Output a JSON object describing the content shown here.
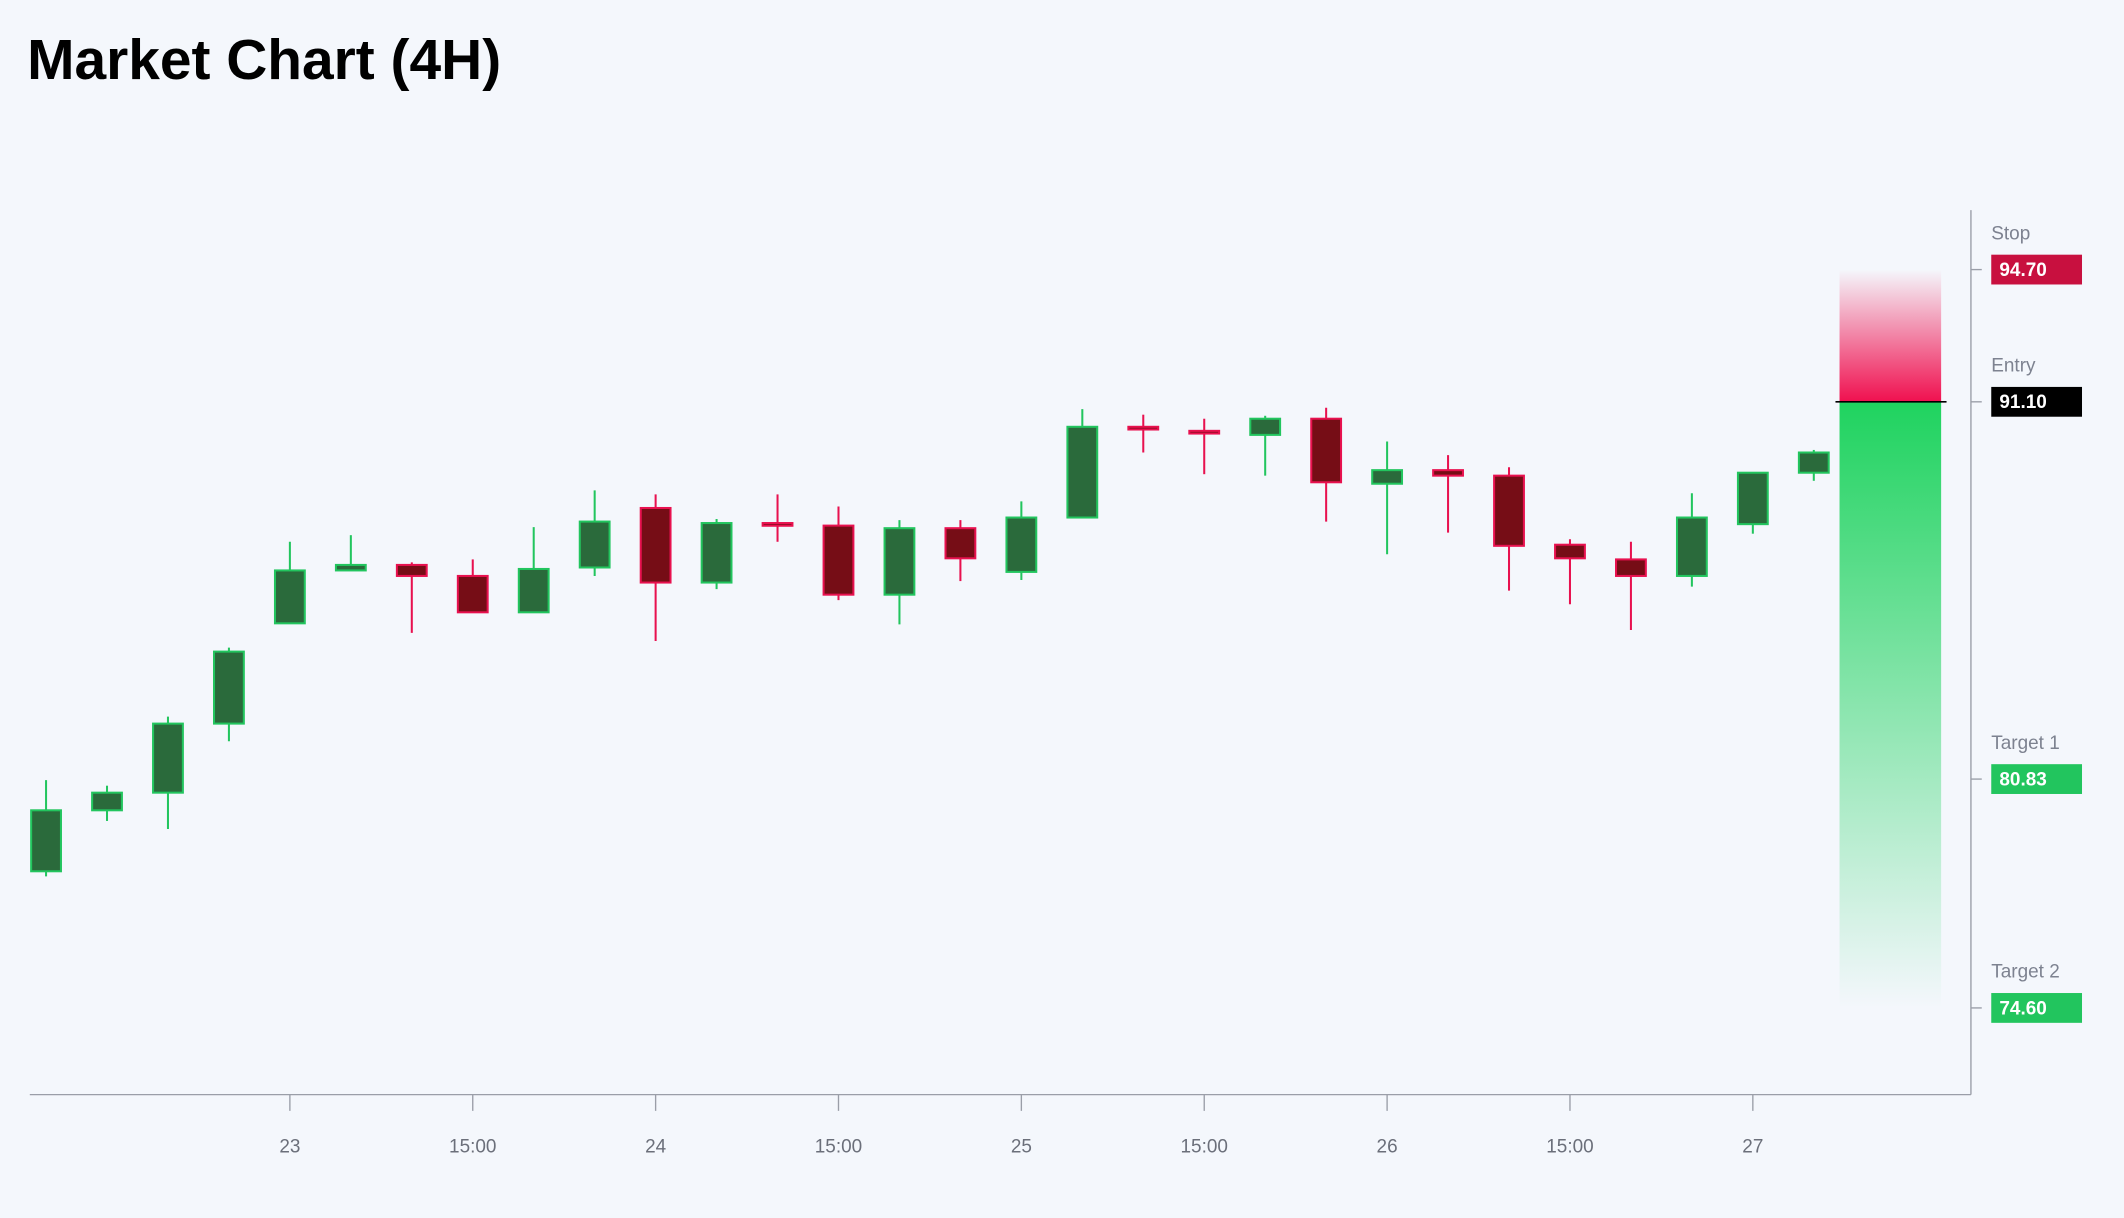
{
  "chart_data": {
    "type": "candlestick",
    "title": "Market Chart (4H)",
    "categories": [
      null,
      null,
      null,
      null,
      "23",
      null,
      null,
      "15:00",
      null,
      null,
      "24",
      null,
      null,
      "15:00",
      null,
      null,
      "25",
      null,
      null,
      "15:00",
      null,
      null,
      "26",
      null,
      null,
      "15:00",
      null,
      null,
      "27",
      null
    ],
    "open": [
      78.32,
      79.98,
      80.46,
      82.34,
      85.07,
      86.51,
      86.66,
      86.36,
      85.37,
      86.59,
      88.21,
      86.18,
      87.8,
      87.73,
      85.85,
      87.66,
      86.47,
      87.95,
      90.42,
      90.31,
      90.2,
      90.64,
      88.87,
      89.24,
      89.09,
      87.21,
      86.81,
      86.36,
      87.77,
      89.17
    ],
    "high": [
      80.8,
      80.65,
      82.53,
      84.41,
      87.29,
      87.47,
      86.73,
      86.81,
      87.69,
      88.69,
      88.58,
      87.91,
      88.58,
      88.25,
      87.88,
      87.88,
      88.39,
      90.9,
      90.75,
      90.64,
      90.72,
      90.94,
      90.02,
      89.65,
      89.32,
      87.36,
      87.29,
      88.61,
      89.17,
      89.79
    ],
    "low": [
      78.18,
      79.69,
      79.47,
      81.86,
      85.07,
      86.51,
      84.81,
      85.37,
      85.37,
      86.36,
      84.59,
      86.0,
      87.29,
      85.7,
      85.04,
      86.22,
      86.25,
      87.95,
      89.72,
      89.13,
      89.09,
      87.84,
      86.95,
      87.54,
      85.96,
      85.59,
      84.89,
      86.07,
      87.51,
      88.95
    ],
    "close": [
      79.98,
      80.46,
      82.34,
      84.3,
      86.51,
      86.66,
      86.36,
      85.37,
      86.55,
      87.84,
      86.18,
      87.8,
      87.73,
      85.85,
      87.66,
      86.84,
      87.95,
      90.42,
      90.35,
      90.24,
      90.64,
      88.91,
      89.24,
      89.09,
      87.18,
      86.84,
      86.36,
      87.95,
      89.17,
      89.72
    ],
    "up_color": "#2a6a3b",
    "up_border": "#22c55e",
    "down_color": "#760d16",
    "down_border": "#e8114f",
    "ylim": [
      72.24,
      96.32
    ],
    "levels": [
      {
        "name": "Stop",
        "value": 94.7,
        "label": "94.70",
        "color": "#c8103f"
      },
      {
        "name": "Entry",
        "value": 91.1,
        "label": "91.10",
        "color": "#000000"
      },
      {
        "name": "Target 1",
        "value": 80.83,
        "label": "80.83",
        "color": "#22c55e"
      },
      {
        "name": "Target 2",
        "value": 74.6,
        "label": "74.60",
        "color": "#22c55e"
      }
    ]
  }
}
